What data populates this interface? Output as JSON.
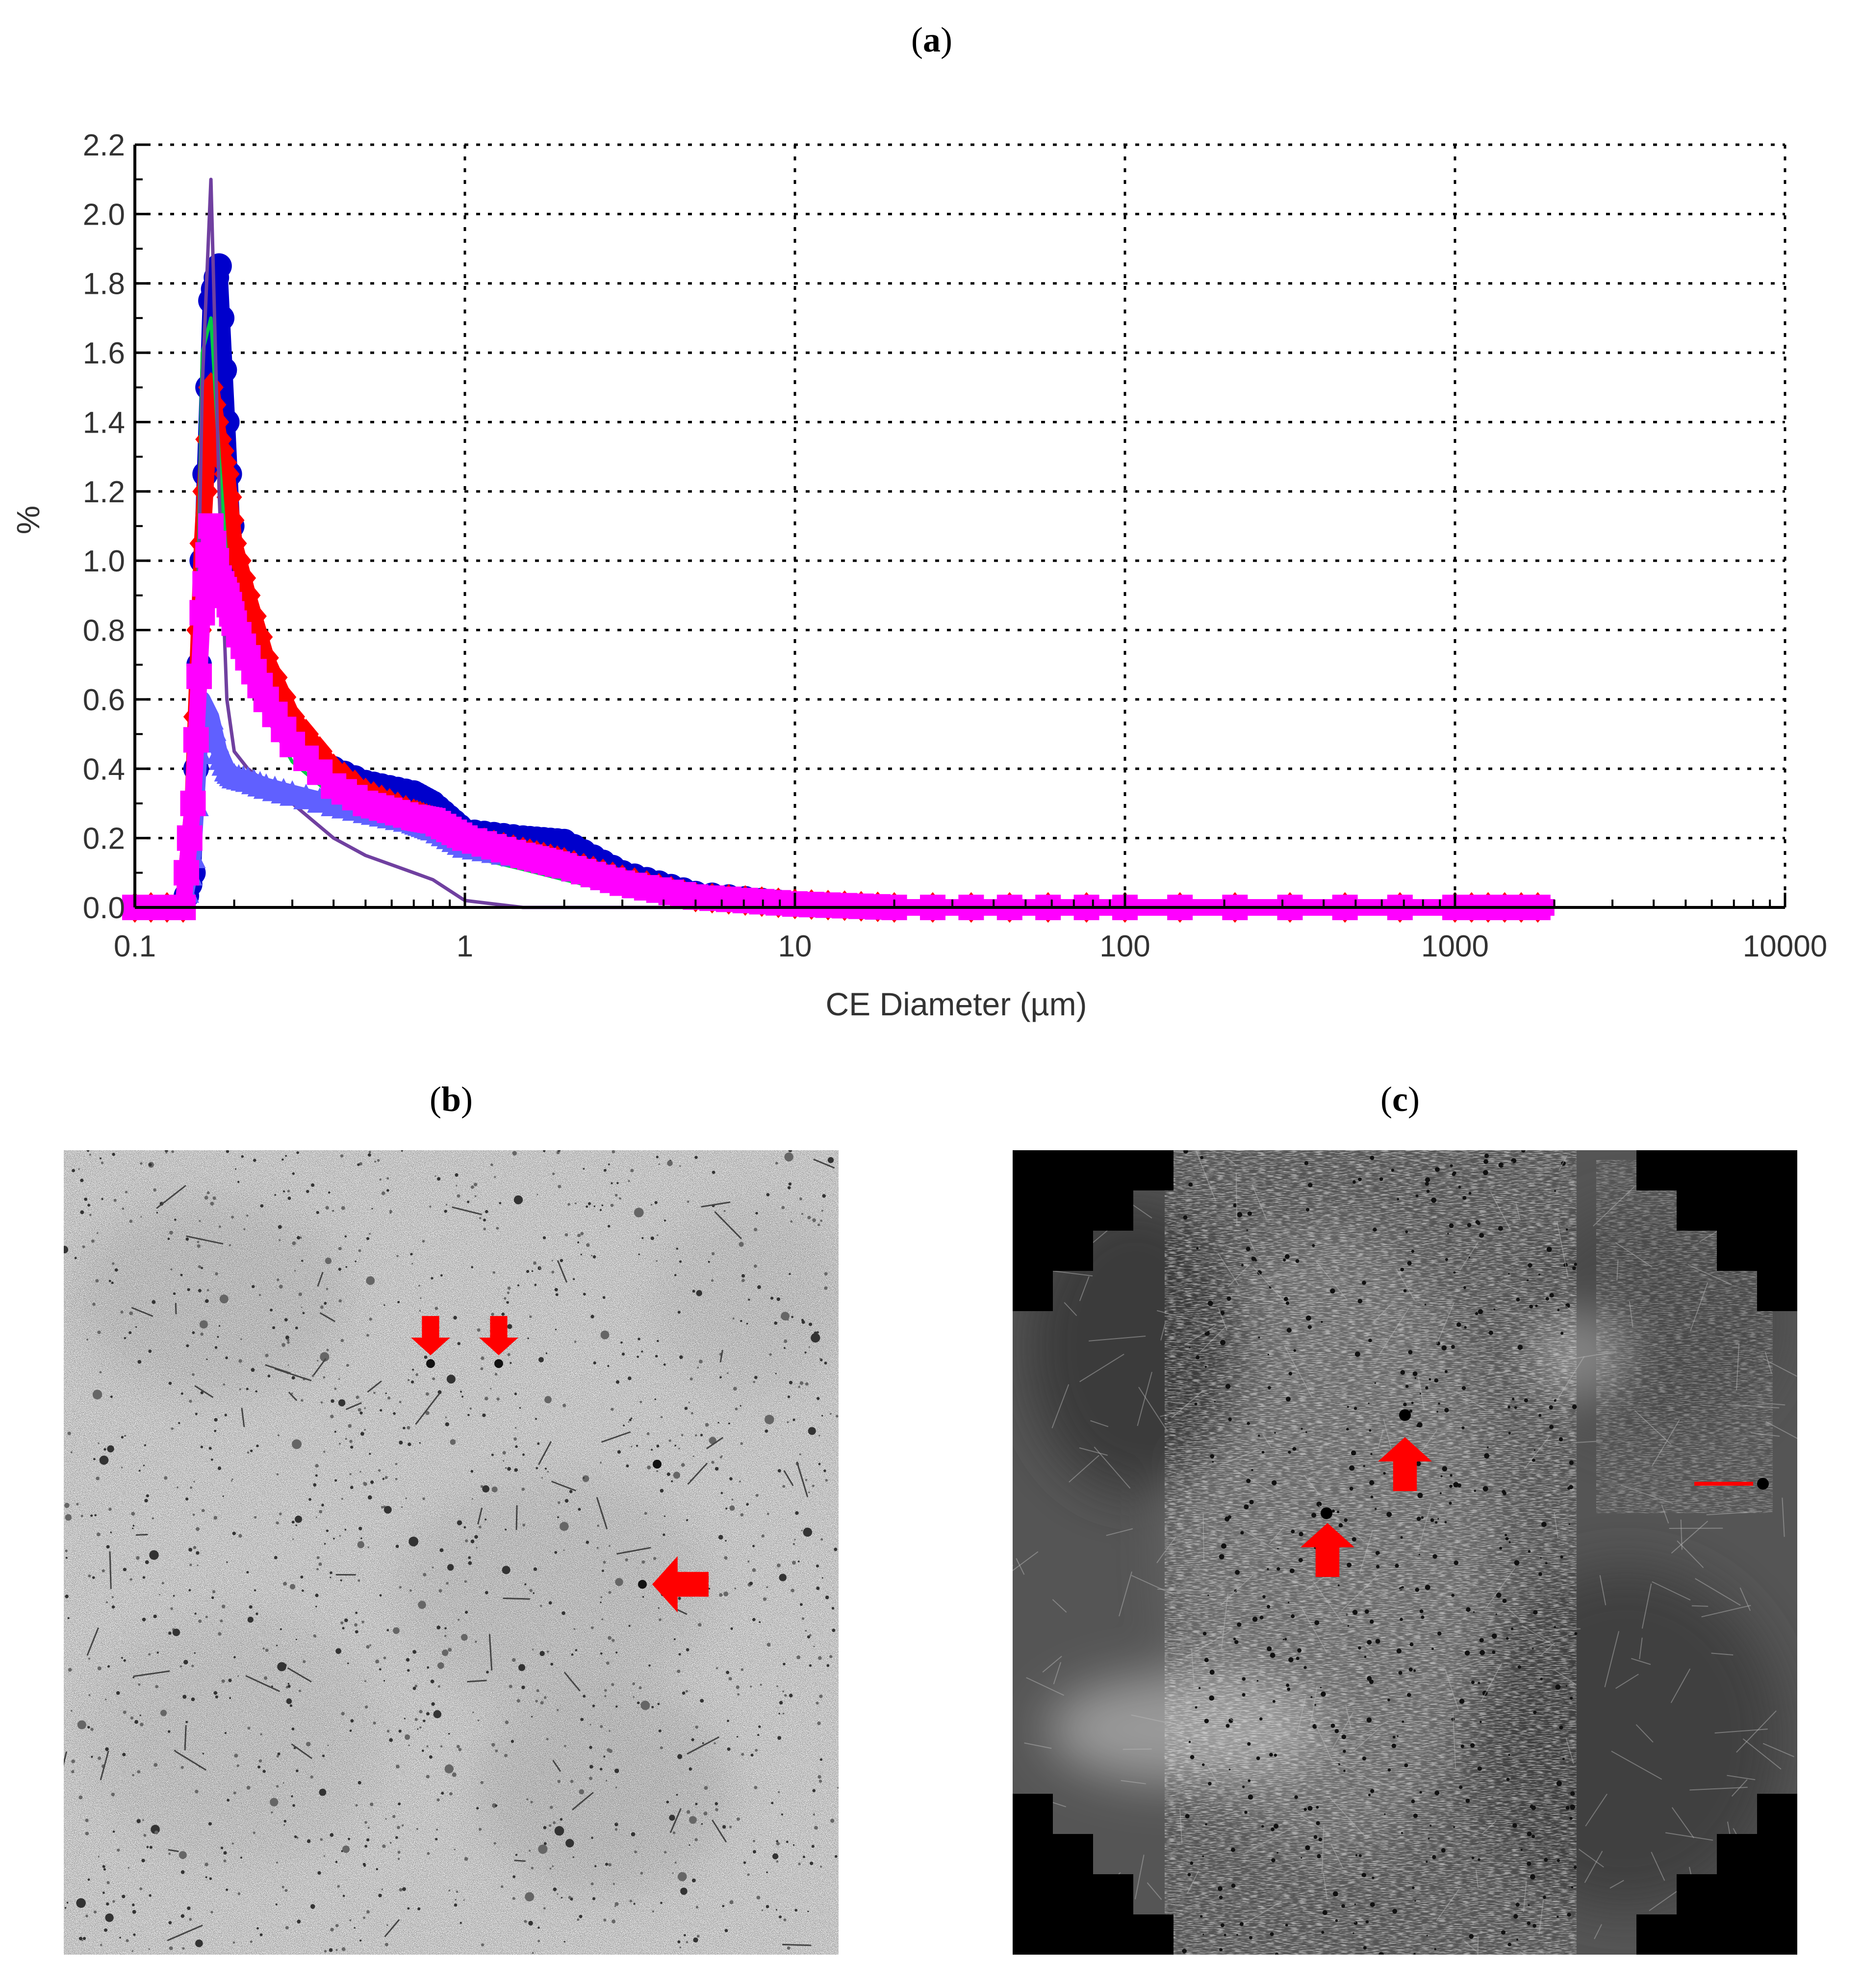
{
  "panels": {
    "a": {
      "open": "(",
      "letter": "a",
      "close": ")"
    },
    "b": {
      "open": "(",
      "letter": "b",
      "close": ")"
    },
    "c": {
      "open": "(",
      "letter": "c",
      "close": ")"
    }
  },
  "chart_data": {
    "type": "line",
    "title": "",
    "xlabel": "CE Diameter (µm)",
    "ylabel": "%",
    "x_scale": "log",
    "xlim": [
      0.1,
      10000
    ],
    "ylim": [
      0.0,
      2.2
    ],
    "x_ticks": [
      "0.1",
      "1",
      "10",
      "100",
      "1000",
      "10000"
    ],
    "y_ticks": [
      "0.0",
      "0.2",
      "0.4",
      "0.6",
      "0.8",
      "1.0",
      "1.2",
      "1.4",
      "1.6",
      "1.8",
      "2.0",
      "2.2"
    ],
    "grid": true,
    "legend": "none",
    "x": [
      0.1,
      0.14,
      0.15,
      0.16,
      0.17,
      0.18,
      0.19,
      0.2,
      0.22,
      0.25,
      0.3,
      0.4,
      0.5,
      0.7,
      0.8,
      1,
      1.5,
      2,
      3,
      5,
      10,
      20,
      100,
      1000,
      2000
    ],
    "series": [
      {
        "color": "#0000cc",
        "marker": "circle",
        "values": [
          0.0,
          0.0,
          0.1,
          1.0,
          1.75,
          1.85,
          1.4,
          0.95,
          0.75,
          0.6,
          0.48,
          0.4,
          0.36,
          0.33,
          0.3,
          0.22,
          0.2,
          0.19,
          0.1,
          0.04,
          0.01,
          0.0,
          0.0,
          0.0,
          0.0
        ]
      },
      {
        "color": "#ff0000",
        "marker": "diamond",
        "values": [
          0.0,
          0.0,
          0.3,
          1.05,
          1.5,
          1.35,
          1.25,
          1.05,
          0.9,
          0.72,
          0.55,
          0.4,
          0.33,
          0.27,
          0.25,
          0.2,
          0.16,
          0.13,
          0.08,
          0.03,
          0.01,
          0.0,
          0.0,
          0.0,
          0.0
        ]
      },
      {
        "color": "#ff00ff",
        "marker": "square",
        "values": [
          0.0,
          0.0,
          0.3,
          0.85,
          1.1,
          0.95,
          0.9,
          0.82,
          0.72,
          0.6,
          0.47,
          0.35,
          0.3,
          0.26,
          0.25,
          0.2,
          0.15,
          0.12,
          0.07,
          0.03,
          0.01,
          0.0,
          0.0,
          0.0,
          0.0
        ]
      },
      {
        "color": "#00cc44",
        "marker": "none",
        "values": [
          0.0,
          0.0,
          0.1,
          1.6,
          1.7,
          1.3,
          1.0,
          0.85,
          0.7,
          0.55,
          0.42,
          0.32,
          0.27,
          0.22,
          0.2,
          0.15,
          0.11,
          0.08,
          0.04,
          0.01,
          0.0,
          0.0,
          0.0,
          0.0,
          0.0
        ]
      },
      {
        "color": "#7040a0",
        "marker": "none",
        "values": [
          0.0,
          0.0,
          0.1,
          1.5,
          2.1,
          1.2,
          0.6,
          0.45,
          0.4,
          0.36,
          0.3,
          0.2,
          0.15,
          0.1,
          0.08,
          0.02,
          0.0,
          0.0,
          0.0,
          0.0,
          0.0,
          0.0,
          0.0,
          0.0,
          0.0
        ]
      },
      {
        "color": "#6060ff",
        "marker": "triangle",
        "values": [
          0.0,
          0.0,
          0.15,
          0.6,
          0.55,
          0.45,
          0.4,
          0.38,
          0.37,
          0.35,
          0.33,
          0.3,
          0.28,
          0.25,
          0.23,
          0.18,
          0.15,
          0.12,
          0.07,
          0.03,
          0.01,
          0.0,
          0.0,
          0.0,
          0.0
        ]
      }
    ]
  },
  "image_b": {
    "arrow_color": "#ff0000",
    "background": "#f4f4f4"
  },
  "image_c": {
    "arrow_color": "#ff0000",
    "background": "#555555"
  }
}
